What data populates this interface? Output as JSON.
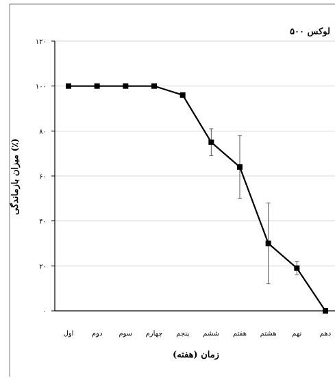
{
  "chart_data": {
    "type": "line",
    "annotation": "۵۰۰ لوکس",
    "xlabel": "زمان (هفته)",
    "ylabel": "میزان بازماندگی (٪)",
    "ylim": [
      0,
      120
    ],
    "yticks": [
      0,
      20,
      40,
      60,
      80,
      100,
      120
    ],
    "ytick_labels": [
      "۰",
      "۲۰",
      "۴۰",
      "۶۰",
      "۸۰",
      "۱۰۰",
      "۱۲۰"
    ],
    "categories": [
      "اول",
      "دوم",
      "سوم",
      "چهارم",
      "پنجم",
      "ششم",
      "هفتم",
      "هشتم",
      "نهم",
      "دهم"
    ],
    "grid": true,
    "series": [
      {
        "values": [
          100,
          100,
          100,
          100,
          96,
          75,
          64,
          30,
          19,
          0
        ],
        "error": [
          0,
          0,
          0,
          0,
          0,
          6,
          14,
          18,
          3,
          0
        ],
        "color": "#000000",
        "marker": "square"
      }
    ]
  }
}
